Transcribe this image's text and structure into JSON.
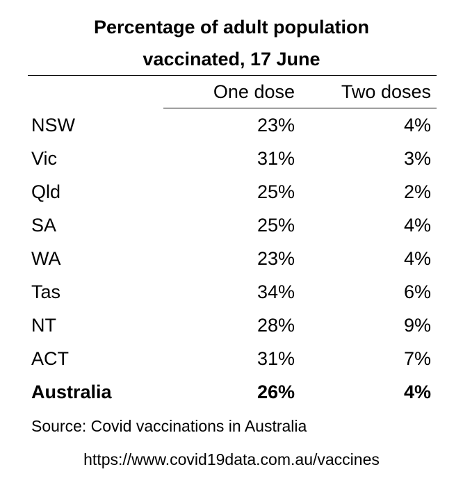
{
  "chart_data": {
    "type": "table",
    "title_lines": [
      "Percentage of adult population",
      "vaccinated,  17 June"
    ],
    "columns": [
      "",
      "One dose",
      "Two doses"
    ],
    "rows": [
      {
        "region": "NSW",
        "one_dose": "23%",
        "two_doses": "4%"
      },
      {
        "region": "Vic",
        "one_dose": "31%",
        "two_doses": "3%"
      },
      {
        "region": "Qld",
        "one_dose": "25%",
        "two_doses": "2%"
      },
      {
        "region": "SA",
        "one_dose": "25%",
        "two_doses": "4%"
      },
      {
        "region": "WA",
        "one_dose": "23%",
        "two_doses": "4%"
      },
      {
        "region": "Tas",
        "one_dose": "34%",
        "two_doses": "6%"
      },
      {
        "region": "NT",
        "one_dose": "28%",
        "two_doses": "9%"
      },
      {
        "region": "ACT",
        "one_dose": "31%",
        "two_doses": "7%"
      }
    ],
    "total": {
      "region": "Australia",
      "one_dose": "26%",
      "two_doses": "4%"
    },
    "source": "Source: Covid vaccinations in Australia",
    "url": "https://www.covid19data.com.au/vaccines"
  }
}
